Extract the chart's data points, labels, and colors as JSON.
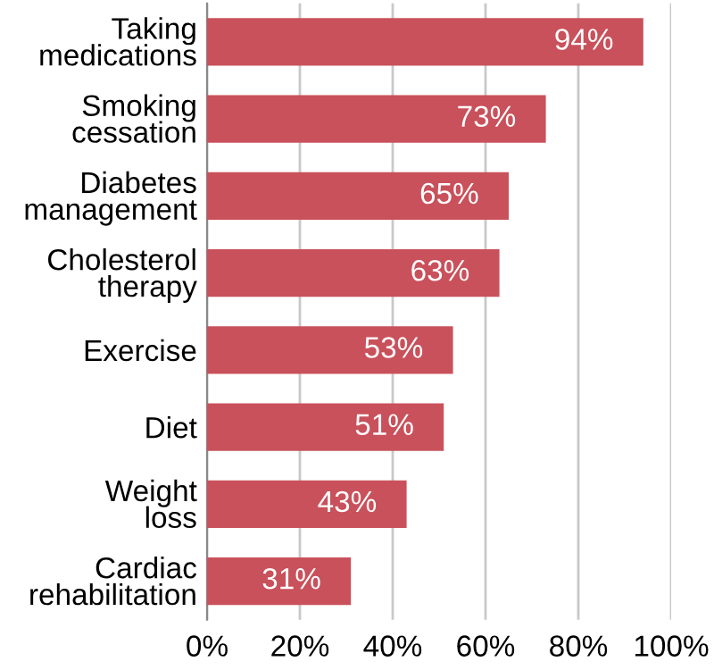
{
  "chart_data": {
    "type": "bar",
    "orientation": "horizontal",
    "categories": [
      "Taking\nmedications",
      "Smoking\ncessation",
      "Diabetes\nmanagement",
      "Cholesterol\ntherapy",
      "Exercise",
      "Diet",
      "Weight\nloss",
      "Cardiac\nrehabilitation"
    ],
    "values": [
      94,
      73,
      65,
      63,
      53,
      51,
      43,
      31
    ],
    "value_labels": [
      "94%",
      "73%",
      "65%",
      "63%",
      "53%",
      "51%",
      "43%",
      "31%"
    ],
    "color": "#c9515b",
    "xlim": [
      0,
      100
    ],
    "xticks": [
      {
        "value": 0,
        "label": "0%"
      },
      {
        "value": 20,
        "label": "20%"
      },
      {
        "value": 40,
        "label": "40%"
      },
      {
        "value": 60,
        "label": "60%"
      },
      {
        "value": 80,
        "label": "80%"
      },
      {
        "value": 100,
        "label": "100%"
      }
    ],
    "grid": "x"
  }
}
